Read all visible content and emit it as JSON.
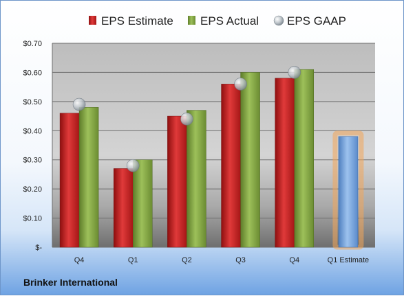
{
  "company": "Brinker International",
  "colors": {
    "estimate": "#cc1f1f",
    "actual": "#7ea040",
    "gaap": "#9aa4ad",
    "future_estimate": "#6f9fd8",
    "highlight": "#f2a65a"
  },
  "chart_data": {
    "type": "bar",
    "categories": [
      "Q4",
      "Q1",
      "Q2",
      "Q3",
      "Q4",
      "Q1 Estimate"
    ],
    "series": [
      {
        "name": "EPS Estimate",
        "values": [
          0.46,
          0.27,
          0.45,
          0.56,
          0.58,
          null
        ]
      },
      {
        "name": "EPS Actual",
        "values": [
          0.48,
          0.3,
          0.47,
          0.6,
          0.61,
          null
        ]
      },
      {
        "name": "EPS GAAP",
        "values": [
          0.49,
          0.28,
          0.44,
          0.56,
          0.6,
          null
        ]
      }
    ],
    "forecast": {
      "category": "Q1 Estimate",
      "value": 0.38
    },
    "ylim": [
      0,
      0.7
    ],
    "yticks": [
      {
        "value": 0,
        "label": "$-"
      },
      {
        "value": 0.1,
        "label": "$0.10"
      },
      {
        "value": 0.2,
        "label": "$0.20"
      },
      {
        "value": 0.3,
        "label": "$0.30"
      },
      {
        "value": 0.4,
        "label": "$0.40"
      },
      {
        "value": 0.5,
        "label": "$0.50"
      },
      {
        "value": 0.6,
        "label": "$0.60"
      },
      {
        "value": 0.7,
        "label": "$0.70"
      }
    ],
    "legend": [
      "EPS Estimate",
      "EPS Actual",
      "EPS GAAP"
    ],
    "legend_position": "top",
    "grid": true
  }
}
